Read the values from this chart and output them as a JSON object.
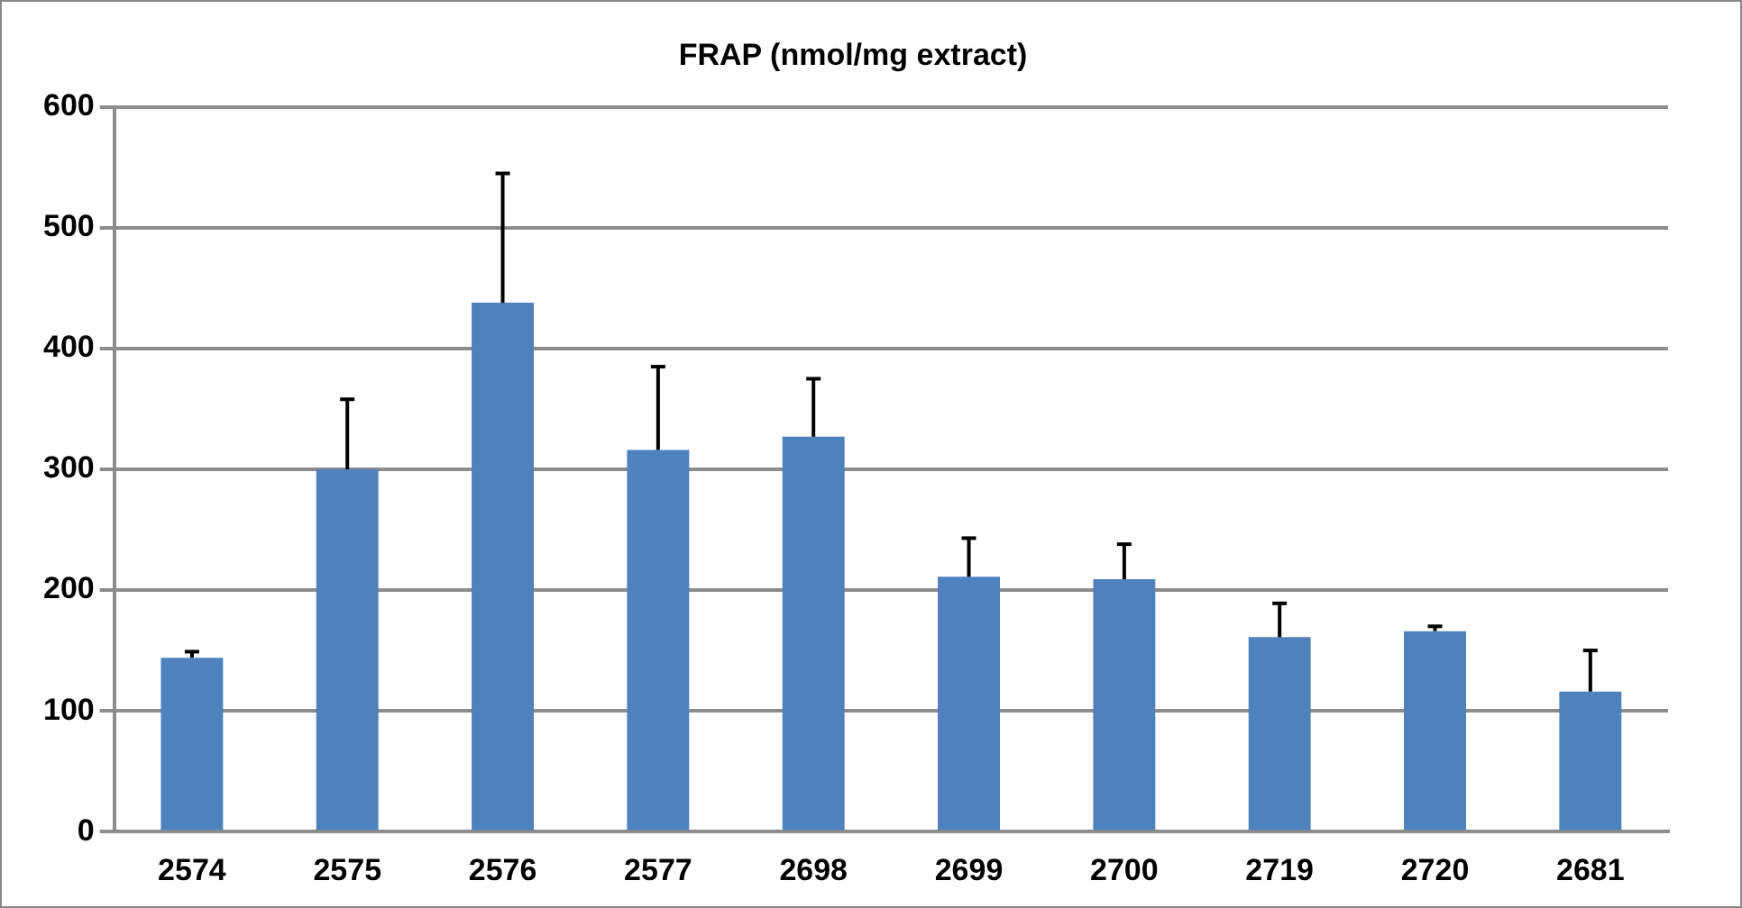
{
  "chart_data": {
    "type": "bar",
    "title": "FRAP (nmol/mg extract)",
    "categories": [
      "2574",
      "2575",
      "2576",
      "2577",
      "2698",
      "2699",
      "2700",
      "2719",
      "2720",
      "2681"
    ],
    "values": [
      144,
      300,
      438,
      316,
      327,
      211,
      209,
      161,
      166,
      116
    ],
    "errors": [
      [
        144,
        149
      ],
      [
        300,
        358
      ],
      [
        438,
        545
      ],
      [
        316,
        385
      ],
      [
        327,
        375
      ],
      [
        211,
        243
      ],
      [
        209,
        238
      ],
      [
        161,
        189
      ],
      [
        166,
        170
      ],
      [
        116,
        150
      ]
    ],
    "color": "#4f81bd",
    "ylim": [
      0,
      600
    ],
    "yticks": [
      0,
      100,
      200,
      300,
      400,
      500,
      600
    ],
    "grid": "y",
    "legend": false
  }
}
